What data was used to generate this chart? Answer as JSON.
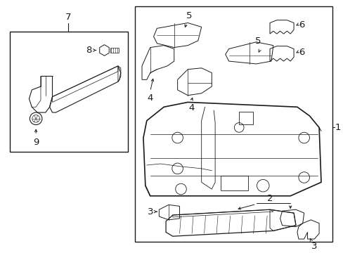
{
  "bg_color": "#ffffff",
  "line_color": "#1a1a1a",
  "fig_width": 4.89,
  "fig_height": 3.6,
  "dpi": 100,
  "font_size": 8.5
}
